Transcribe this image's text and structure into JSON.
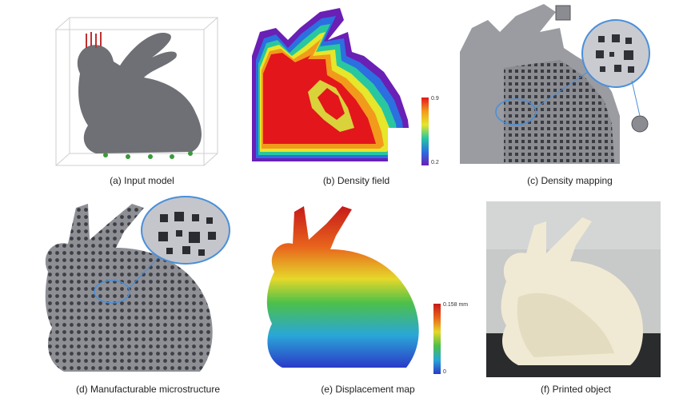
{
  "figure": {
    "panels": [
      {
        "id": "a",
        "caption": "(a) Input model"
      },
      {
        "id": "b",
        "caption": "(b) Density field"
      },
      {
        "id": "c",
        "caption": "(c) Density mapping"
      },
      {
        "id": "d",
        "caption": "(d) Manufacturable microstructure"
      },
      {
        "id": "e",
        "caption": "(e) Displacement map"
      },
      {
        "id": "f",
        "caption": "(f) Printed object"
      }
    ],
    "density_colorbar": {
      "max": "0.9",
      "min": "0.2"
    },
    "displacement_colorbar": {
      "max": "0.158 mm",
      "min": "0"
    }
  }
}
